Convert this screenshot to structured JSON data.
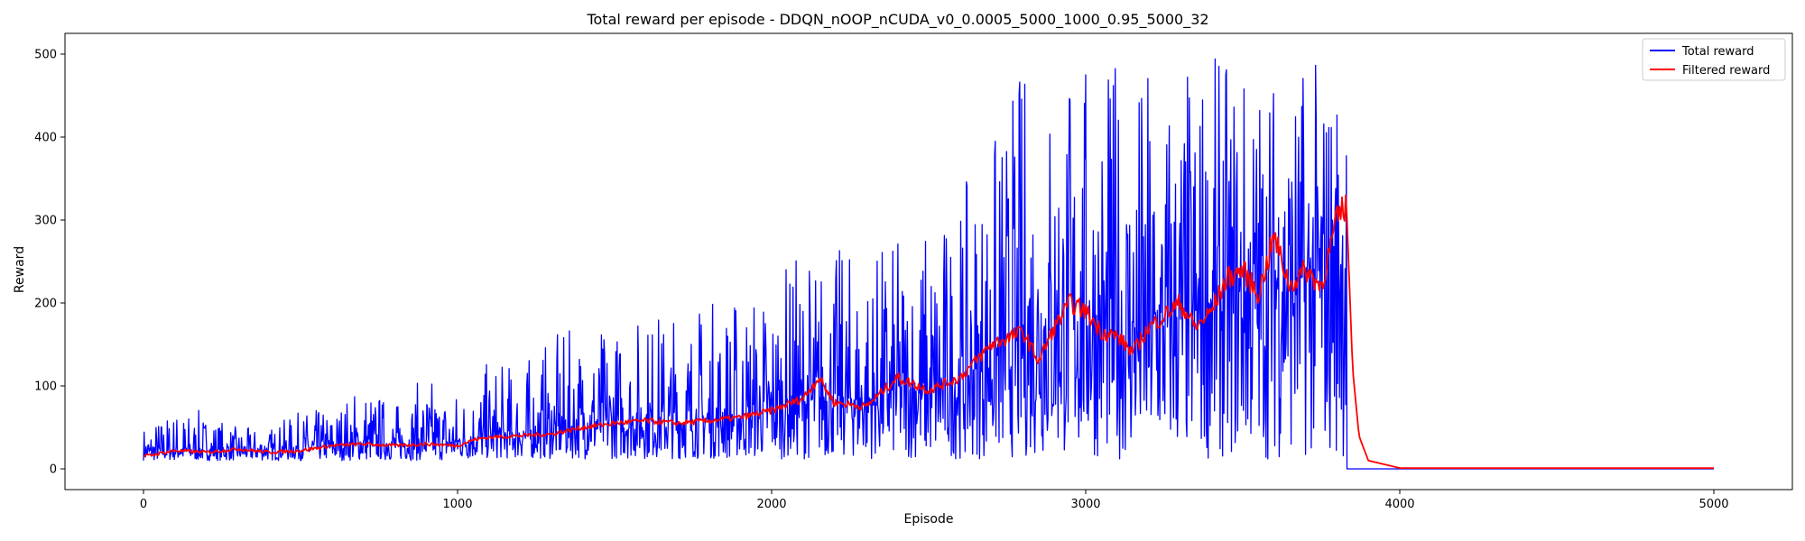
{
  "chart_data": {
    "type": "line",
    "title": "Total reward per episode - DDQN_nOOP_nCUDA_v0_0.0005_5000_1000_0.95_5000_32",
    "xlabel": "Episode",
    "ylabel": "Reward",
    "xlim": [
      -250,
      5250
    ],
    "ylim": [
      -25,
      525
    ],
    "xticks": [
      0,
      1000,
      2000,
      3000,
      4000,
      5000
    ],
    "yticks": [
      0,
      100,
      200,
      300,
      400,
      500
    ],
    "legend_position": "top-right",
    "series": [
      {
        "name": "Total reward",
        "color": "#0000ff",
        "x": [
          0,
          100,
          200,
          300,
          400,
          500,
          600,
          700,
          800,
          900,
          1000,
          1100,
          1200,
          1300,
          1400,
          1500,
          1600,
          1700,
          1800,
          1900,
          2000,
          2100,
          2200,
          2300,
          2400,
          2500,
          2600,
          2700,
          2800,
          2900,
          3000,
          3100,
          3200,
          3300,
          3400,
          3500,
          3600,
          3700,
          3800,
          3830,
          3840,
          4000,
          5000
        ],
        "y": [
          20,
          22,
          22,
          21,
          23,
          25,
          27,
          30,
          30,
          32,
          32,
          38,
          40,
          45,
          55,
          58,
          55,
          55,
          58,
          60,
          70,
          80,
          90,
          80,
          95,
          90,
          100,
          130,
          150,
          170,
          180,
          160,
          160,
          180,
          200,
          210,
          230,
          230,
          250,
          240,
          0,
          0,
          0
        ],
        "band_min": [
          10,
          10,
          10,
          10,
          10,
          10,
          10,
          10,
          10,
          10,
          10,
          12,
          12,
          12,
          12,
          12,
          12,
          12,
          12,
          12,
          12,
          12,
          12,
          12,
          12,
          12,
          12,
          12,
          12,
          12,
          12,
          12,
          12,
          12,
          12,
          12,
          12,
          12,
          12,
          12,
          0,
          0,
          0
        ],
        "band_max": [
          55,
          75,
          70,
          50,
          50,
          70,
          75,
          110,
          80,
          115,
          100,
          130,
          130,
          160,
          175,
          175,
          195,
          200,
          210,
          220,
          235,
          270,
          270,
          270,
          280,
          310,
          330,
          410,
          500,
          500,
          500,
          500,
          500,
          500,
          500,
          500,
          500,
          500,
          500,
          500,
          0,
          0,
          0
        ]
      },
      {
        "name": "Filtered reward",
        "color": "#ff0000",
        "x": [
          0,
          100,
          200,
          300,
          400,
          500,
          600,
          700,
          800,
          900,
          1000,
          1050,
          1100,
          1200,
          1300,
          1400,
          1500,
          1600,
          1700,
          1800,
          1900,
          2000,
          2100,
          2150,
          2200,
          2300,
          2400,
          2500,
          2600,
          2650,
          2700,
          2800,
          2850,
          2900,
          2950,
          3000,
          3050,
          3100,
          3150,
          3200,
          3250,
          3300,
          3350,
          3400,
          3450,
          3500,
          3550,
          3600,
          3650,
          3700,
          3750,
          3800,
          3830,
          3850,
          3870,
          3900,
          4000,
          5000
        ],
        "y": [
          15,
          22,
          20,
          24,
          20,
          22,
          28,
          30,
          28,
          30,
          28,
          35,
          38,
          40,
          42,
          50,
          55,
          58,
          55,
          58,
          62,
          70,
          85,
          110,
          80,
          75,
          110,
          95,
          110,
          130,
          150,
          165,
          130,
          170,
          200,
          190,
          165,
          160,
          140,
          170,
          185,
          200,
          170,
          190,
          230,
          240,
          210,
          280,
          220,
          240,
          220,
          300,
          320,
          120,
          40,
          10,
          1,
          1
        ]
      }
    ]
  }
}
